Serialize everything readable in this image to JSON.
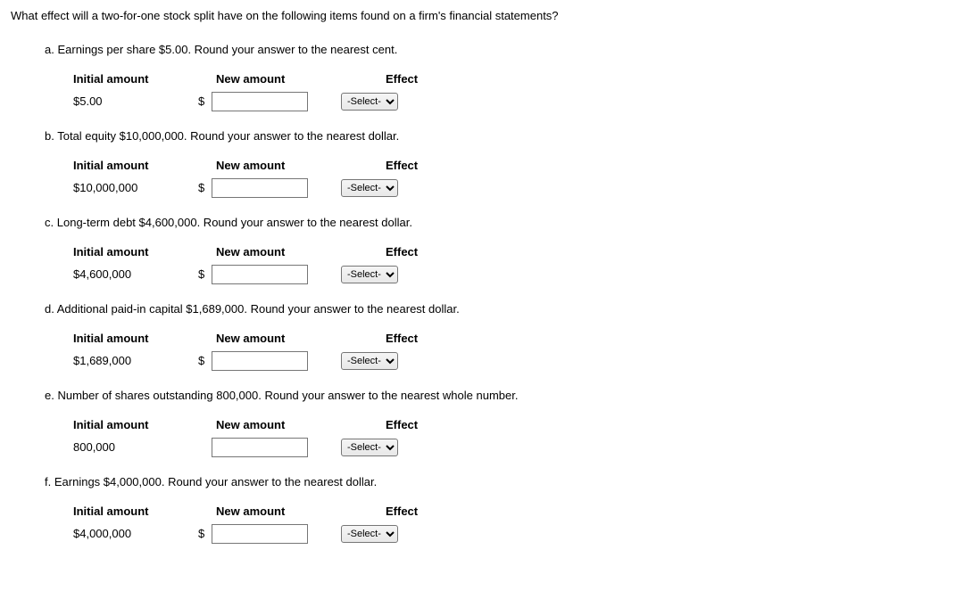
{
  "intro": "What effect will a two-for-one stock split have on the following items found on a firm's financial statements?",
  "headers": {
    "initial": "Initial amount",
    "new": "New amount",
    "effect": "Effect"
  },
  "currency": "$",
  "select_placeholder": "-Select-",
  "parts": {
    "a": {
      "letter": "a.",
      "prompt": "Earnings per share $5.00. Round your answer to the nearest cent.",
      "initial": "$5.00",
      "has_dollar": true
    },
    "b": {
      "letter": "b.",
      "prompt": "Total equity $10,000,000. Round your answer to the nearest dollar.",
      "initial": "$10,000,000",
      "has_dollar": true
    },
    "c": {
      "letter": "c.",
      "prompt": "Long-term debt $4,600,000. Round your answer to the nearest dollar.",
      "initial": "$4,600,000",
      "has_dollar": true
    },
    "d": {
      "letter": "d.",
      "prompt": "Additional paid-in capital $1,689,000. Round your answer to the nearest dollar.",
      "initial": "$1,689,000",
      "has_dollar": true
    },
    "e": {
      "letter": "e.",
      "prompt": "Number of shares outstanding 800,000. Round your answer to the nearest whole number.",
      "initial": "800,000",
      "has_dollar": false
    },
    "f": {
      "letter": "f.",
      "prompt": "Earnings $4,000,000. Round your answer to the nearest dollar.",
      "initial": "$4,000,000",
      "has_dollar": true
    }
  }
}
